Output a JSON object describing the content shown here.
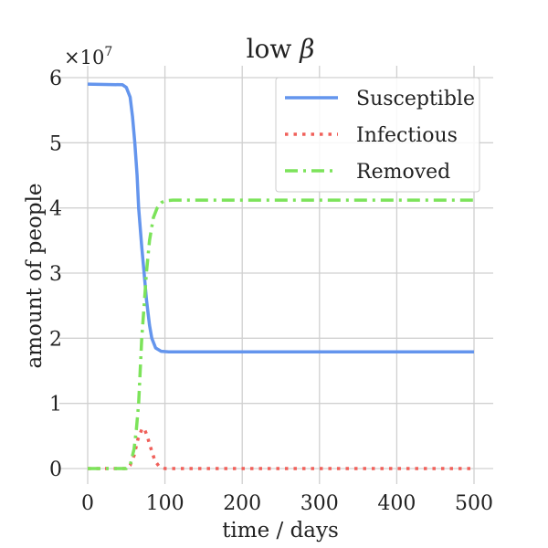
{
  "chart_data": {
    "type": "line",
    "title": "low β",
    "title_text": "low ",
    "title_symbol": "β",
    "xlabel": "time / days",
    "ylabel": "amount of people",
    "y_scale_base": "×10",
    "y_scale_exp": "7",
    "y_multiplier": 10000000,
    "xlim": [
      -20,
      525
    ],
    "ylim": [
      -0.25,
      6.1
    ],
    "xticks": [
      0,
      100,
      200,
      300,
      400,
      500
    ],
    "xtick_labels": [
      "0",
      "100",
      "200",
      "300",
      "400",
      "500"
    ],
    "yticks": [
      0,
      1,
      2,
      3,
      4,
      5,
      6
    ],
    "ytick_labels": [
      "0",
      "1",
      "2",
      "3",
      "4",
      "5",
      "6"
    ],
    "grid": true,
    "legend_position": "top-right",
    "series": [
      {
        "name": "Susceptible",
        "color": "#6495ED",
        "style": "solid",
        "x": [
          0,
          45,
          50,
          55,
          58,
          61,
          64,
          66,
          70,
          73,
          76,
          80,
          83,
          88,
          95,
          105,
          200,
          300,
          400,
          500
        ],
        "y": [
          5.9,
          5.89,
          5.85,
          5.7,
          5.4,
          5.0,
          4.5,
          4.0,
          3.4,
          3.0,
          2.6,
          2.2,
          2.0,
          1.85,
          1.8,
          1.79,
          1.79,
          1.79,
          1.79,
          1.79
        ]
      },
      {
        "name": "Infectious",
        "color": "#F0605A",
        "style": "dotted",
        "x": [
          0,
          50,
          55,
          60,
          65,
          70,
          73,
          77,
          82,
          87,
          92,
          97,
          100,
          200,
          300,
          400,
          500
        ],
        "y": [
          0,
          0,
          0.05,
          0.2,
          0.45,
          0.6,
          0.62,
          0.5,
          0.3,
          0.12,
          0.04,
          0.01,
          0,
          0,
          0,
          0,
          0
        ]
      },
      {
        "name": "Removed",
        "color": "#7CE35A",
        "style": "dashdot",
        "x": [
          0,
          50,
          55,
          60,
          63,
          66,
          68,
          70,
          73,
          76,
          80,
          85,
          90,
          95,
          100,
          110,
          200,
          300,
          400,
          500
        ],
        "y": [
          0,
          0,
          0.05,
          0.3,
          0.6,
          1.0,
          1.5,
          2.0,
          2.5,
          3.0,
          3.5,
          3.85,
          4.0,
          4.08,
          4.11,
          4.12,
          4.12,
          4.12,
          4.12,
          4.12
        ]
      }
    ]
  }
}
